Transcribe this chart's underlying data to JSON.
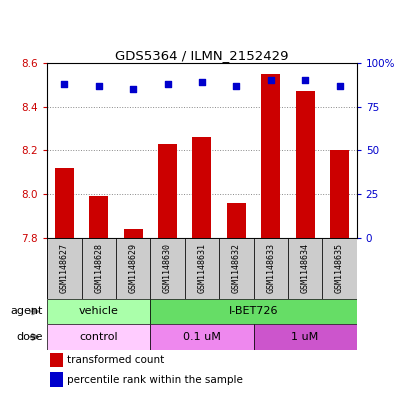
{
  "title": "GDS5364 / ILMN_2152429",
  "samples": [
    "GSM1148627",
    "GSM1148628",
    "GSM1148629",
    "GSM1148630",
    "GSM1148631",
    "GSM1148632",
    "GSM1148633",
    "GSM1148634",
    "GSM1148635"
  ],
  "transformed_counts": [
    8.12,
    7.99,
    7.84,
    8.23,
    8.26,
    7.96,
    8.55,
    8.47,
    8.2
  ],
  "percentile_ranks": [
    88,
    87,
    85,
    88,
    89,
    87,
    90,
    90,
    87
  ],
  "bar_color": "#cc0000",
  "dot_color": "#0000cc",
  "ylim": [
    7.8,
    8.6
  ],
  "y2lim": [
    0,
    100
  ],
  "yticks": [
    7.8,
    8.0,
    8.2,
    8.4,
    8.6
  ],
  "y2ticks": [
    0,
    25,
    50,
    75,
    100
  ],
  "y2ticklabels": [
    "0",
    "25",
    "50",
    "75",
    "100%"
  ],
  "agent_groups": [
    {
      "label": "vehicle",
      "start": 0,
      "end": 3,
      "color": "#aaffaa"
    },
    {
      "label": "I-BET726",
      "start": 3,
      "end": 9,
      "color": "#66dd66"
    }
  ],
  "dose_groups": [
    {
      "label": "control",
      "start": 0,
      "end": 3,
      "color": "#ffccff"
    },
    {
      "label": "0.1 uM",
      "start": 3,
      "end": 6,
      "color": "#ee88ee"
    },
    {
      "label": "1 uM",
      "start": 6,
      "end": 9,
      "color": "#cc55cc"
    }
  ],
  "legend_bar_label": "transformed count",
  "legend_dot_label": "percentile rank within the sample",
  "ylabel_color": "#cc0000",
  "y2label_color": "#0000cc",
  "sample_bg_color": "#cccccc",
  "bg_color": "#ffffff",
  "bar_width": 0.55,
  "grid_color": "#888888"
}
